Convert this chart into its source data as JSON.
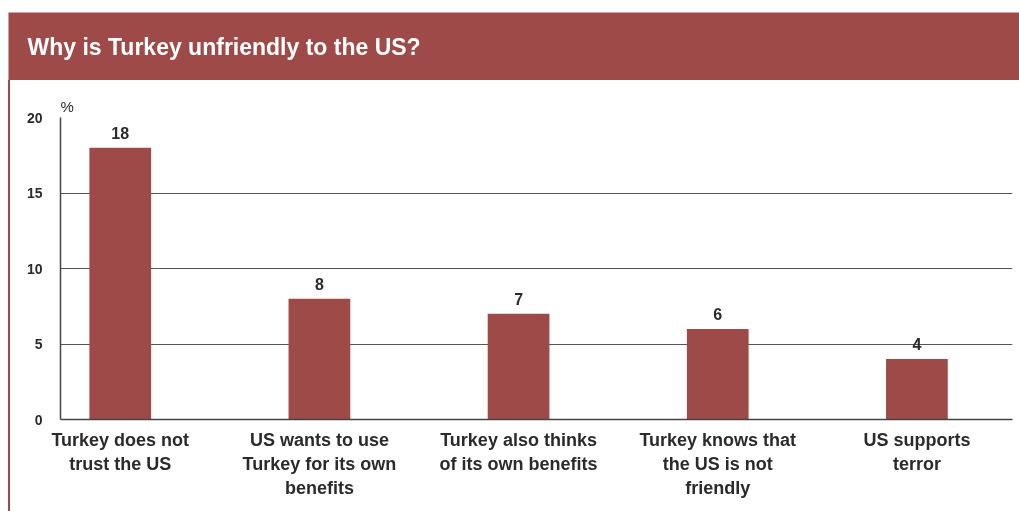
{
  "chart_data": {
    "type": "bar",
    "title": "Why is Turkey unfriendly to the US?",
    "ylabel": "%",
    "categories": [
      "Turkey does not trust the US",
      "US wants to use Turkey for its own benefits",
      "Turkey also thinks of its own benefits",
      "Turkey knows that the US is not friendly",
      "US supports terror"
    ],
    "values": [
      18,
      8,
      7,
      6,
      4
    ],
    "color": "#9e4a49",
    "ylim": [
      0,
      20
    ],
    "yticks": [
      0,
      5,
      10,
      15,
      20
    ],
    "grid": "y",
    "data_labels": true
  }
}
